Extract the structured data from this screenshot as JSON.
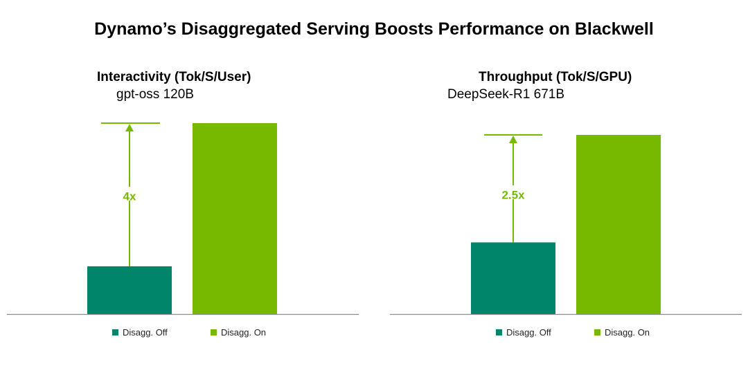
{
  "title": "Dynamo’s Disaggregated Serving Boosts Performance on Blackwell",
  "colors": {
    "off": "#00856a",
    "on": "#76b900",
    "axis": "#8a8a8a",
    "arrow": "#76b900"
  },
  "chart_data": [
    {
      "type": "bar",
      "title": "Interactivity (Tok/S/User)",
      "subtitle": "gpt-oss 120B",
      "categories": [
        "Disagg. Off",
        "Disagg. On"
      ],
      "values": [
        1,
        4
      ],
      "ylim": [
        0,
        4
      ],
      "multiplier_label": "4x",
      "legend": [
        "Disagg. Off",
        "Disagg. On"
      ],
      "legend_position": "bottom"
    },
    {
      "type": "bar",
      "title": "Throughput (Tok/S/GPU)",
      "subtitle": "DeepSeek-R1 671B",
      "categories": [
        "Disagg. Off",
        "Disagg. On"
      ],
      "values": [
        1,
        2.5
      ],
      "ylim": [
        0,
        2.5
      ],
      "multiplier_label": "2.5x",
      "legend": [
        "Disagg. Off",
        "Disagg. On"
      ],
      "legend_position": "bottom"
    }
  ]
}
